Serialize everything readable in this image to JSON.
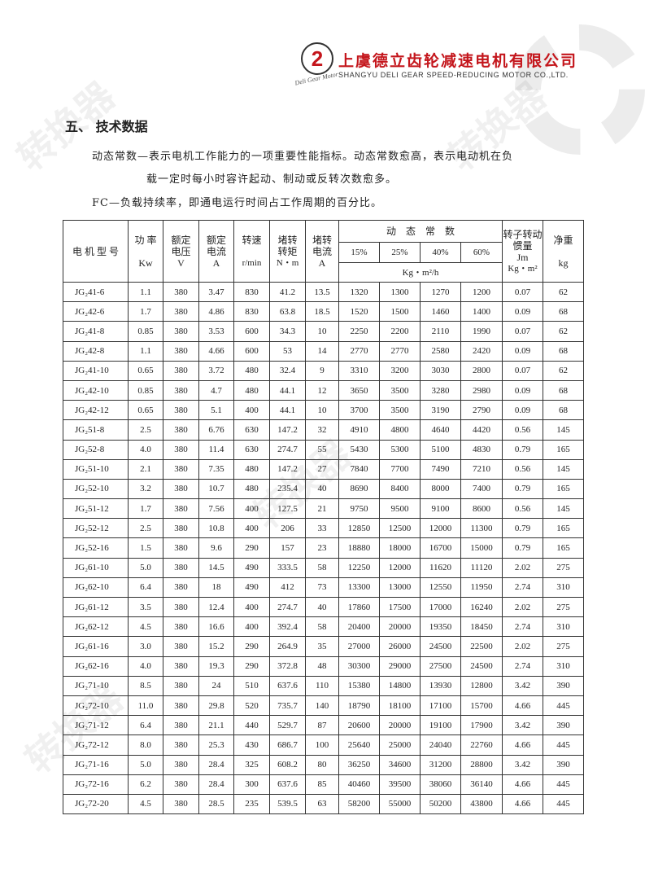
{
  "header": {
    "company_cn": "上虞德立齿轮减速电机有限公司",
    "company_en": "SHANGYU DELI GEAR SPEED-REDUCING MOTOR CO.,LTD.",
    "logo_text": "Deli Gear Motor",
    "brand_color": "#c4161c"
  },
  "section_title": "五、 技术数据",
  "para1_line1": "动态常数—表示电机工作能力的一项重要性能指标。动态常数愈高，表示电动机在负",
  "para1_line2": "载一定时每小时容许起动、制动或反转次数愈多。",
  "para2": "FC—负载持续率，即通电运行时间占工作周期的百分比。",
  "table": {
    "headers": {
      "model": "电 机 型 号",
      "power": "功 率",
      "power_unit": "Kw",
      "voltage": "额定电压",
      "voltage_unit": "V",
      "current": "额定电流",
      "current_unit": "A",
      "speed": "转速",
      "speed_unit": "r/min",
      "torque": "堵转转矩",
      "torque_unit": "N・m",
      "locked_current": "堵转电流",
      "locked_current_unit": "A",
      "dynamic": "动　态　常　数",
      "fc": [
        "15%",
        "25%",
        "40%",
        "60%"
      ],
      "dynamic_unit": "Kg・m²/h",
      "inertia": "转子转动惯量",
      "inertia_sym": "Jm",
      "inertia_unit": "Kg・m²",
      "weight": "净重",
      "weight_unit": "kg"
    },
    "rows": [
      [
        "JG₂41-6",
        "1.1",
        "380",
        "3.47",
        "830",
        "41.2",
        "13.5",
        "1320",
        "1300",
        "1270",
        "1200",
        "0.07",
        "62"
      ],
      [
        "JG₂42-6",
        "1.7",
        "380",
        "4.86",
        "830",
        "63.8",
        "18.5",
        "1520",
        "1500",
        "1460",
        "1400",
        "0.09",
        "68"
      ],
      [
        "JG₂41-8",
        "0.85",
        "380",
        "3.53",
        "600",
        "34.3",
        "10",
        "2250",
        "2200",
        "2110",
        "1990",
        "0.07",
        "62"
      ],
      [
        "JG₂42-8",
        "1.1",
        "380",
        "4.66",
        "600",
        "53",
        "14",
        "2770",
        "2770",
        "2580",
        "2420",
        "0.09",
        "68"
      ],
      [
        "JG₂41-10",
        "0.65",
        "380",
        "3.72",
        "480",
        "32.4",
        "9",
        "3310",
        "3200",
        "3030",
        "2800",
        "0.07",
        "62"
      ],
      [
        "JG₂42-10",
        "0.85",
        "380",
        "4.7",
        "480",
        "44.1",
        "12",
        "3650",
        "3500",
        "3280",
        "2980",
        "0.09",
        "68"
      ],
      [
        "JG₂42-12",
        "0.65",
        "380",
        "5.1",
        "400",
        "44.1",
        "10",
        "3700",
        "3500",
        "3190",
        "2790",
        "0.09",
        "68"
      ],
      [
        "JG₂51-8",
        "2.5",
        "380",
        "6.76",
        "630",
        "147.2",
        "32",
        "4910",
        "4800",
        "4640",
        "4420",
        "0.56",
        "145"
      ],
      [
        "JG₂52-8",
        "4.0",
        "380",
        "11.4",
        "630",
        "274.7",
        "55",
        "5430",
        "5300",
        "5100",
        "4830",
        "0.79",
        "165"
      ],
      [
        "JG₂51-10",
        "2.1",
        "380",
        "7.35",
        "480",
        "147.2",
        "27",
        "7840",
        "7700",
        "7490",
        "7210",
        "0.56",
        "145"
      ],
      [
        "JG₂52-10",
        "3.2",
        "380",
        "10.7",
        "480",
        "235.4",
        "40",
        "8690",
        "8400",
        "8000",
        "7400",
        "0.79",
        "165"
      ],
      [
        "JG₂51-12",
        "1.7",
        "380",
        "7.56",
        "400",
        "127.5",
        "21",
        "9750",
        "9500",
        "9100",
        "8600",
        "0.56",
        "145"
      ],
      [
        "JG₂52-12",
        "2.5",
        "380",
        "10.8",
        "400",
        "206",
        "33",
        "12850",
        "12500",
        "12000",
        "11300",
        "0.79",
        "165"
      ],
      [
        "JG₂52-16",
        "1.5",
        "380",
        "9.6",
        "290",
        "157",
        "23",
        "18880",
        "18000",
        "16700",
        "15000",
        "0.79",
        "165"
      ],
      [
        "JG₂61-10",
        "5.0",
        "380",
        "14.5",
        "490",
        "333.5",
        "58",
        "12250",
        "12000",
        "11620",
        "11120",
        "2.02",
        "275"
      ],
      [
        "JG₂62-10",
        "6.4",
        "380",
        "18",
        "490",
        "412",
        "73",
        "13300",
        "13000",
        "12550",
        "11950",
        "2.74",
        "310"
      ],
      [
        "JG₂61-12",
        "3.5",
        "380",
        "12.4",
        "400",
        "274.7",
        "40",
        "17860",
        "17500",
        "17000",
        "16240",
        "2.02",
        "275"
      ],
      [
        "JG₂62-12",
        "4.5",
        "380",
        "16.6",
        "400",
        "392.4",
        "58",
        "20400",
        "20000",
        "19350",
        "18450",
        "2.74",
        "310"
      ],
      [
        "JG₂61-16",
        "3.0",
        "380",
        "15.2",
        "290",
        "264.9",
        "35",
        "27000",
        "26000",
        "24500",
        "22500",
        "2.02",
        "275"
      ],
      [
        "JG₂62-16",
        "4.0",
        "380",
        "19.3",
        "290",
        "372.8",
        "48",
        "30300",
        "29000",
        "27500",
        "24500",
        "2.74",
        "310"
      ],
      [
        "JG₂71-10",
        "8.5",
        "380",
        "24",
        "510",
        "637.6",
        "110",
        "15380",
        "14800",
        "13930",
        "12800",
        "3.42",
        "390"
      ],
      [
        "JG₂72-10",
        "11.0",
        "380",
        "29.8",
        "520",
        "735.7",
        "140",
        "18790",
        "18100",
        "17100",
        "15700",
        "4.66",
        "445"
      ],
      [
        "JG₂71-12",
        "6.4",
        "380",
        "21.1",
        "440",
        "529.7",
        "87",
        "20600",
        "20000",
        "19100",
        "17900",
        "3.42",
        "390"
      ],
      [
        "JG₂72-12",
        "8.0",
        "380",
        "25.3",
        "430",
        "686.7",
        "100",
        "25640",
        "25000",
        "24040",
        "22760",
        "4.66",
        "445"
      ],
      [
        "JG₂71-16",
        "5.0",
        "380",
        "28.4",
        "325",
        "608.2",
        "80",
        "36250",
        "34600",
        "31200",
        "28800",
        "3.42",
        "390"
      ],
      [
        "JG₂72-16",
        "6.2",
        "380",
        "28.4",
        "300",
        "637.6",
        "85",
        "40460",
        "39500",
        "38060",
        "36140",
        "4.66",
        "445"
      ],
      [
        "JG₂72-20",
        "4.5",
        "380",
        "28.5",
        "235",
        "539.5",
        "63",
        "58200",
        "55000",
        "50200",
        "43800",
        "4.66",
        "445"
      ]
    ]
  },
  "watermark": "转换器"
}
